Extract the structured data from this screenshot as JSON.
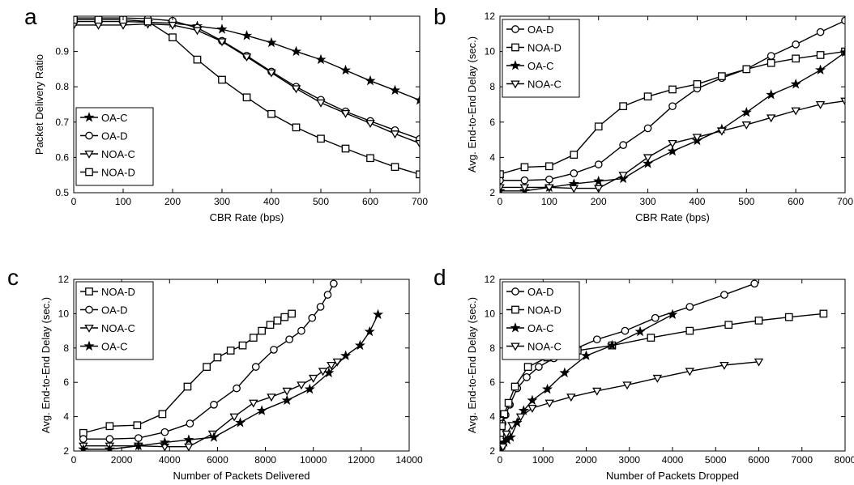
{
  "chart_data": [
    {
      "panel": "a",
      "type": "line",
      "xlabel": "CBR Rate (bps)",
      "ylabel": "Packet Delivery Ratio",
      "xlim": [
        0,
        700
      ],
      "ylim": [
        0.5,
        1.0
      ],
      "xticks": [
        0,
        100,
        200,
        300,
        400,
        500,
        600,
        700
      ],
      "yticks": [
        0.5,
        0.6,
        0.7,
        0.8,
        0.9
      ],
      "grid": false,
      "legend_position": "bottom-left",
      "series": [
        {
          "name": "OA-C",
          "marker": "star",
          "x": [
            0,
            50,
            100,
            150,
            200,
            250,
            300,
            350,
            400,
            450,
            500,
            550,
            600,
            650,
            700
          ],
          "y": [
            0.985,
            0.985,
            0.985,
            0.983,
            0.98,
            0.972,
            0.963,
            0.945,
            0.925,
            0.9,
            0.877,
            0.847,
            0.817,
            0.79,
            0.762
          ]
        },
        {
          "name": "OA-D",
          "marker": "circle",
          "x": [
            0,
            50,
            100,
            150,
            200,
            250,
            300,
            350,
            400,
            450,
            500,
            550,
            600,
            650,
            700
          ],
          "y": [
            0.995,
            0.995,
            0.995,
            0.993,
            0.987,
            0.967,
            0.93,
            0.888,
            0.843,
            0.8,
            0.763,
            0.73,
            0.703,
            0.677,
            0.652
          ]
        },
        {
          "name": "NOA-C",
          "marker": "triangle-down",
          "x": [
            0,
            50,
            100,
            150,
            200,
            250,
            300,
            350,
            400,
            450,
            500,
            550,
            600,
            650,
            700
          ],
          "y": [
            0.975,
            0.975,
            0.975,
            0.978,
            0.975,
            0.96,
            0.928,
            0.885,
            0.84,
            0.795,
            0.755,
            0.725,
            0.697,
            0.667,
            0.64
          ]
        },
        {
          "name": "NOA-D",
          "marker": "square",
          "x": [
            0,
            50,
            100,
            150,
            200,
            250,
            300,
            350,
            400,
            450,
            500,
            550,
            600,
            650,
            700
          ],
          "y": [
            0.99,
            0.99,
            0.99,
            0.985,
            0.94,
            0.877,
            0.82,
            0.77,
            0.723,
            0.685,
            0.653,
            0.625,
            0.598,
            0.573,
            0.552
          ]
        }
      ]
    },
    {
      "panel": "b",
      "type": "line",
      "xlabel": "CBR Rate (bps)",
      "ylabel": "Avg. End-to-End Delay  (sec.)",
      "xlim": [
        0,
        700
      ],
      "ylim": [
        2,
        12
      ],
      "xticks": [
        0,
        100,
        200,
        300,
        400,
        500,
        600,
        700
      ],
      "yticks": [
        2,
        4,
        6,
        8,
        10,
        12
      ],
      "grid": false,
      "legend_position": "top-left",
      "series": [
        {
          "name": "OA-D",
          "marker": "circle",
          "x": [
            0,
            50,
            100,
            150,
            200,
            250,
            300,
            350,
            400,
            450,
            500,
            550,
            600,
            650,
            700
          ],
          "y": [
            2.7,
            2.7,
            2.75,
            3.1,
            3.6,
            4.7,
            5.65,
            6.9,
            7.9,
            8.5,
            9.0,
            9.75,
            10.4,
            11.1,
            11.75
          ]
        },
        {
          "name": "NOA-D",
          "marker": "square",
          "x": [
            0,
            50,
            100,
            150,
            200,
            250,
            300,
            350,
            400,
            450,
            500,
            550,
            600,
            650,
            700
          ],
          "y": [
            3.05,
            3.45,
            3.5,
            4.15,
            5.75,
            6.9,
            7.45,
            7.85,
            8.15,
            8.6,
            9.0,
            9.35,
            9.6,
            9.8,
            10.0
          ]
        },
        {
          "name": "OA-C",
          "marker": "star",
          "x": [
            0,
            50,
            100,
            150,
            200,
            250,
            300,
            350,
            400,
            450,
            500,
            550,
            600,
            650,
            700
          ],
          "y": [
            2.1,
            2.1,
            2.3,
            2.5,
            2.65,
            2.8,
            3.65,
            4.35,
            4.95,
            5.6,
            6.55,
            7.55,
            8.15,
            8.95,
            9.95
          ]
        },
        {
          "name": "NOA-C",
          "marker": "triangle-down",
          "x": [
            0,
            50,
            100,
            150,
            200,
            250,
            300,
            350,
            400,
            450,
            500,
            550,
            600,
            650,
            700
          ],
          "y": [
            2.3,
            2.3,
            2.3,
            2.25,
            2.25,
            3.0,
            4.0,
            4.8,
            5.15,
            5.5,
            5.85,
            6.25,
            6.65,
            7.0,
            7.2
          ]
        }
      ]
    },
    {
      "panel": "c",
      "type": "line",
      "xlabel": "Number of Packets Delivered",
      "ylabel": "Avg. End-to-End Delay  (sec.)",
      "xlim": [
        0,
        14000
      ],
      "ylim": [
        2,
        12
      ],
      "xticks": [
        0,
        2000,
        4000,
        6000,
        8000,
        10000,
        12000,
        14000
      ],
      "yticks": [
        2,
        4,
        6,
        8,
        10,
        12
      ],
      "grid": false,
      "legend_position": "top-left",
      "series": [
        {
          "name": "NOA-D",
          "marker": "square",
          "x": [
            400,
            1500,
            2650,
            3700,
            4750,
            5550,
            6000,
            6550,
            7050,
            7500,
            7850,
            8200,
            8500,
            8800,
            9100
          ],
          "y": [
            3.05,
            3.45,
            3.5,
            4.15,
            5.75,
            6.9,
            7.45,
            7.85,
            8.15,
            8.6,
            9.0,
            9.35,
            9.6,
            9.8,
            10.0
          ]
        },
        {
          "name": "OA-D",
          "marker": "circle",
          "x": [
            400,
            1500,
            2700,
            3800,
            4850,
            5850,
            6800,
            7600,
            8350,
            9000,
            9500,
            9950,
            10300,
            10600,
            10850
          ],
          "y": [
            2.7,
            2.7,
            2.75,
            3.1,
            3.6,
            4.7,
            5.65,
            6.9,
            7.9,
            8.5,
            9.0,
            9.75,
            10.4,
            11.1,
            11.75
          ]
        },
        {
          "name": "NOA-C",
          "marker": "triangle-down",
          "x": [
            400,
            1500,
            2700,
            3800,
            4800,
            5800,
            6700,
            7500,
            8250,
            8900,
            9500,
            10000,
            10400,
            10750,
            11000
          ],
          "y": [
            2.3,
            2.3,
            2.3,
            2.25,
            2.25,
            3.0,
            4.0,
            4.8,
            5.15,
            5.5,
            5.85,
            6.25,
            6.65,
            7.0,
            7.2
          ]
        },
        {
          "name": "OA-C",
          "marker": "star",
          "x": [
            400,
            1500,
            2700,
            3800,
            4800,
            5850,
            6950,
            7850,
            8900,
            9850,
            10650,
            11350,
            11950,
            12350,
            12700
          ],
          "y": [
            2.1,
            2.1,
            2.3,
            2.5,
            2.65,
            2.8,
            3.65,
            4.35,
            4.95,
            5.6,
            6.55,
            7.55,
            8.15,
            8.95,
            9.95
          ]
        }
      ]
    },
    {
      "panel": "d",
      "type": "line",
      "xlabel": "Number of Packets Dropped",
      "ylabel": "Avg. End-to-End Delay  (sec.)",
      "xlim": [
        0,
        8000
      ],
      "ylim": [
        2,
        12
      ],
      "xticks": [
        0,
        1000,
        2000,
        3000,
        4000,
        5000,
        6000,
        7000,
        8000
      ],
      "yticks": [
        2,
        4,
        6,
        8,
        10,
        12
      ],
      "grid": false,
      "legend_position": "top-left",
      "series": [
        {
          "name": "OA-D",
          "marker": "circle",
          "x": [
            10,
            30,
            60,
            130,
            230,
            400,
            620,
            900,
            1250,
            1700,
            2250,
            2900,
            3600,
            4400,
            5200,
            5900
          ],
          "y": [
            2.7,
            3.1,
            3.6,
            4.1,
            4.7,
            5.65,
            6.3,
            6.9,
            7.4,
            7.9,
            8.5,
            9.0,
            9.75,
            10.4,
            11.1,
            11.75
          ]
        },
        {
          "name": "NOA-D",
          "marker": "square",
          "x": [
            10,
            40,
            100,
            200,
            350,
            650,
            1100,
            1800,
            2600,
            3500,
            4400,
            5300,
            6000,
            6700,
            7500
          ],
          "y": [
            3.05,
            3.45,
            4.15,
            4.8,
            5.75,
            6.9,
            7.45,
            7.85,
            8.15,
            8.6,
            9.0,
            9.35,
            9.6,
            9.8,
            10.0
          ]
        },
        {
          "name": "OA-C",
          "marker": "star",
          "x": [
            10,
            25,
            50,
            100,
            170,
            250,
            400,
            550,
            750,
            1100,
            1500,
            2000,
            2600,
            3250,
            4000
          ],
          "y": [
            2.1,
            2.1,
            2.3,
            2.5,
            2.65,
            2.8,
            3.65,
            4.35,
            4.95,
            5.6,
            6.55,
            7.55,
            8.15,
            8.95,
            9.95
          ]
        },
        {
          "name": "NOA-C",
          "marker": "triangle-down",
          "x": [
            10,
            30,
            70,
            150,
            280,
            480,
            750,
            1150,
            1650,
            2250,
            2950,
            3650,
            4400,
            5200,
            6000
          ],
          "y": [
            2.3,
            2.3,
            2.25,
            3.0,
            3.5,
            4.0,
            4.5,
            4.8,
            5.15,
            5.5,
            5.85,
            6.25,
            6.65,
            7.0,
            7.2
          ]
        }
      ]
    }
  ]
}
